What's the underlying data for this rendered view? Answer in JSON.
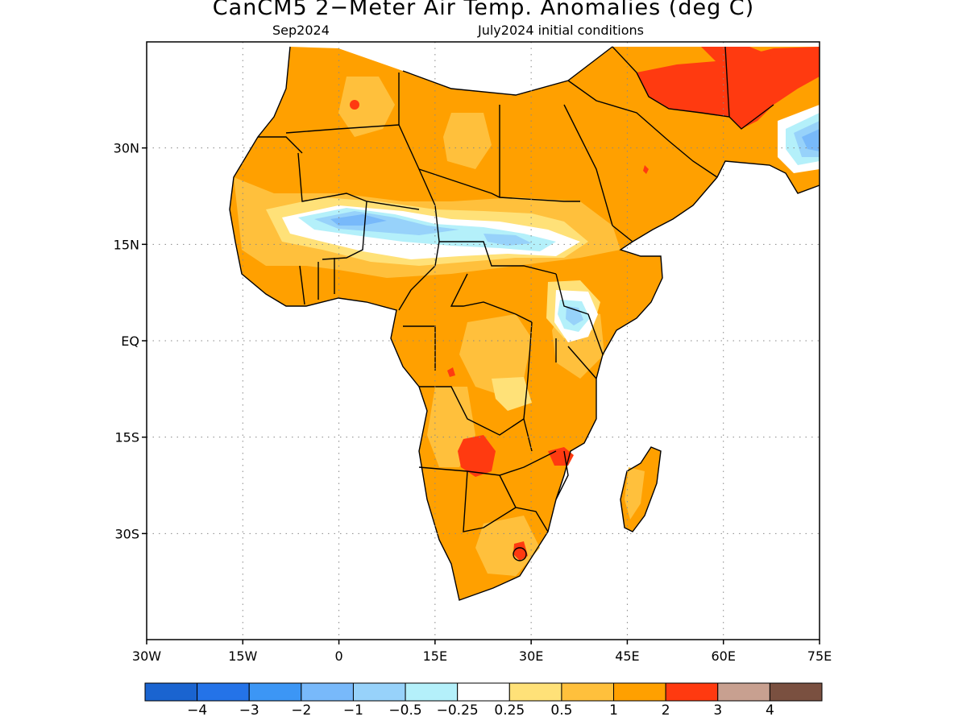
{
  "title": "CanCM5 2−Meter Air Temp. Anomalies (deg C)",
  "subtitle_left": "Sep2024",
  "subtitle_right": "July2024 initial conditions",
  "map": {
    "lon_range": [
      -30,
      75
    ],
    "lat_range": [
      -46.5,
      46.5
    ],
    "lon_ticks": [
      {
        "value": -30,
        "label": "30W"
      },
      {
        "value": -15,
        "label": "15W"
      },
      {
        "value": 0,
        "label": "0"
      },
      {
        "value": 15,
        "label": "15E"
      },
      {
        "value": 30,
        "label": "30E"
      },
      {
        "value": 45,
        "label": "45E"
      },
      {
        "value": 60,
        "label": "60E"
      },
      {
        "value": 75,
        "label": "75E"
      }
    ],
    "lat_ticks": [
      {
        "value": 30,
        "label": "30N"
      },
      {
        "value": 15,
        "label": "15N"
      },
      {
        "value": 0,
        "label": "EQ"
      },
      {
        "value": -15,
        "label": "15S"
      },
      {
        "value": -30,
        "label": "30S"
      }
    ],
    "grid": true
  },
  "colorbar": {
    "colors": [
      "#1a64d0",
      "#2473e8",
      "#3c96f5",
      "#78b9fa",
      "#97d2fa",
      "#b4f0fa",
      "#ffffff",
      "#ffe178",
      "#ffc03c",
      "#ffa000",
      "#ff3a10",
      "#c8a090",
      "#7a5040"
    ],
    "labels": [
      "−4",
      "−3",
      "−2",
      "−1",
      "−0.5",
      "−0.25",
      "0.25",
      "0.5",
      "1",
      "2",
      "3",
      "4"
    ]
  },
  "palette": {
    "land_default": "#ffa000",
    "light_orange": "#ffc03c",
    "yellow": "#ffe178",
    "red": "#ff3a10",
    "white": "#ffffff",
    "light_blue": "#97d2fa",
    "pale_blue": "#b4f0fa",
    "blue": "#78b9fa",
    "mid_blue": "#3c96f5"
  }
}
